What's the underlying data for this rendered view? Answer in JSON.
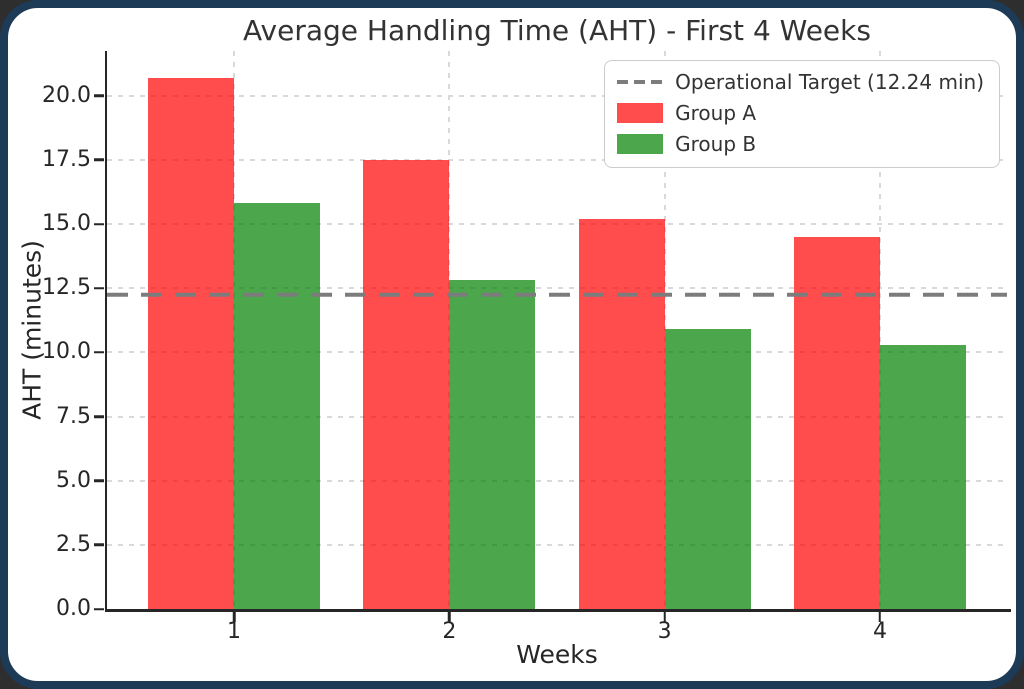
{
  "page": {
    "page_background": "#2e2e2e",
    "card_background": "#ffffff",
    "frame_color": "#1d3a57",
    "text_color": "#262626"
  },
  "chart_data": {
    "type": "bar",
    "title": "Average Handling Time (AHT) - First 4 Weeks",
    "xlabel": "Weeks",
    "ylabel": "AHT (minutes)",
    "categories": [
      1,
      2,
      3,
      4
    ],
    "xtick_labels": [
      "1",
      "2",
      "3",
      "4"
    ],
    "series": [
      {
        "name": "Group A",
        "fill": "rgba(255,0,0,0.7)",
        "hex": "#FF4C4C",
        "values": [
          20.7,
          17.5,
          15.2,
          14.5
        ]
      },
      {
        "name": "Group B",
        "fill": "rgba(0,128,0,0.7)",
        "hex": "#4CA64C",
        "values": [
          15.8,
          12.8,
          10.9,
          10.3
        ]
      }
    ],
    "target_line": {
      "label": "Operational Target (12.24 min)",
      "value": 12.24,
      "color": "#7c7c7c",
      "style": "dashed"
    },
    "bar_width": 0.4,
    "xlim": [
      0.41,
      4.59
    ],
    "ylim": [
      0,
      21.74
    ],
    "yticks": [
      0,
      2.5,
      5,
      7.5,
      10,
      12.5,
      15,
      17.5,
      20
    ],
    "ytick_labels": [
      "0.0",
      "2.5",
      "5.0",
      "7.5",
      "10.0",
      "12.5",
      "15.0",
      "17.5",
      "20.0"
    ],
    "grid": {
      "horizontal": "dashed",
      "vertical": "dashed",
      "color": "#d9d9d9",
      "axisbelow": true
    },
    "legend": {
      "position": "upper right"
    }
  }
}
